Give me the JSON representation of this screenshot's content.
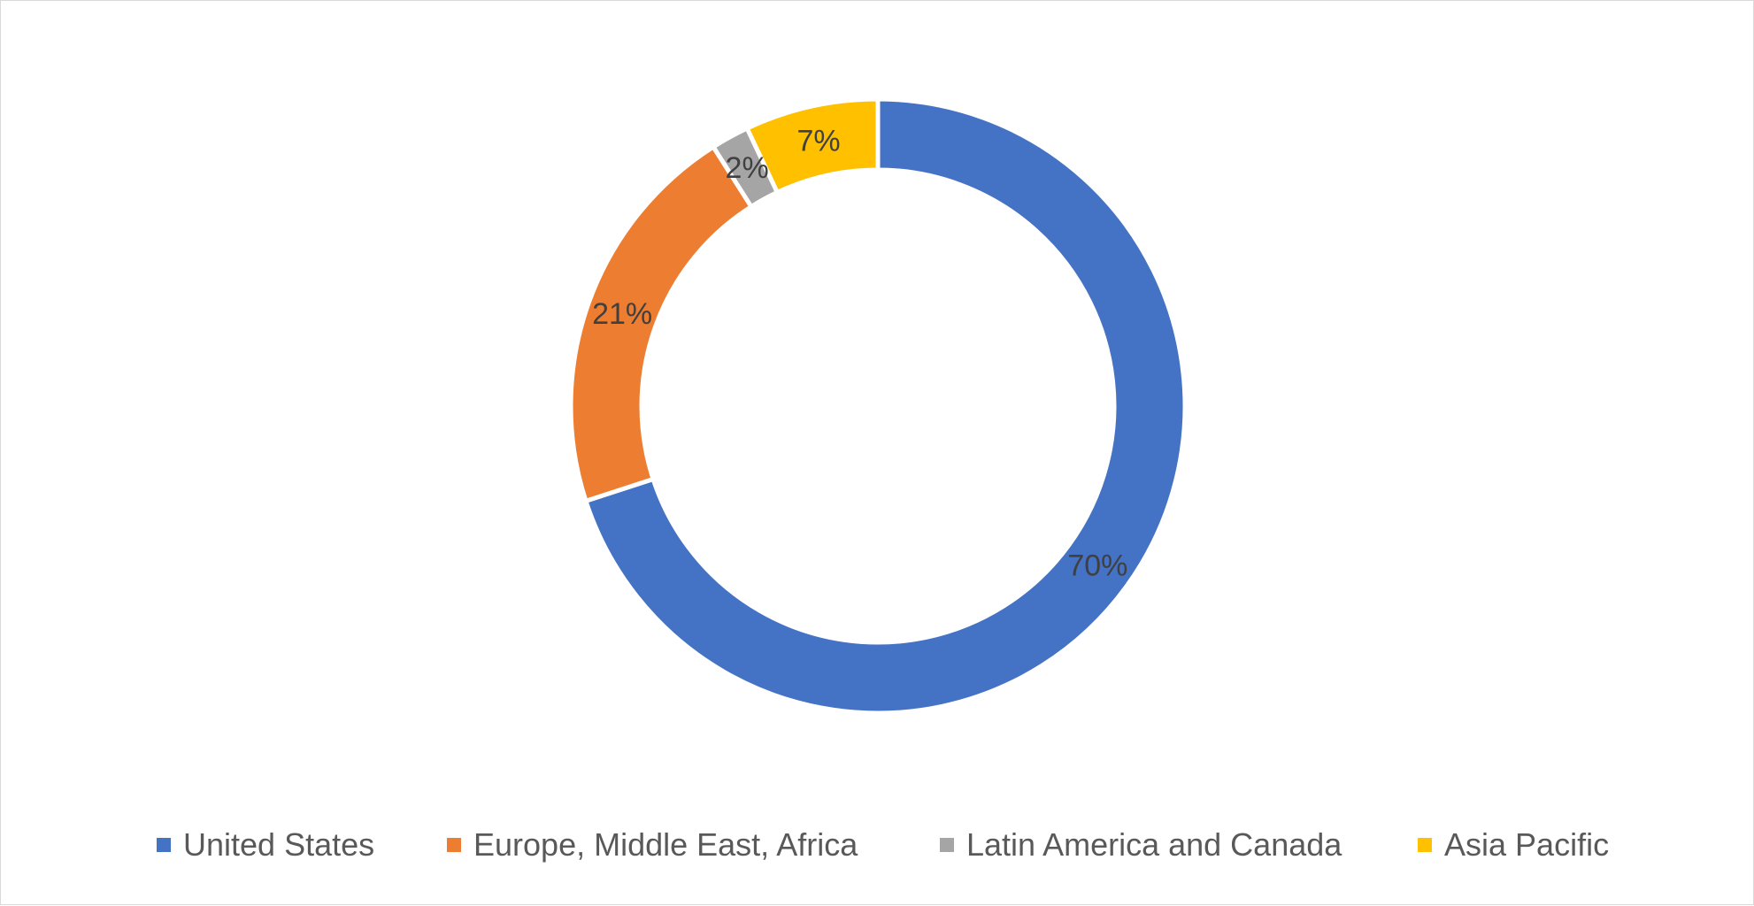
{
  "chart_data": {
    "type": "doughnut",
    "title": "",
    "series": [
      {
        "values": [
          70,
          21,
          2,
          7
        ],
        "labels": [
          "70%",
          "21%",
          "2%",
          "7%"
        ]
      }
    ],
    "categories": [
      "United States",
      "Europe, Middle East, Africa",
      "Latin America and Canada",
      "Asia Pacific"
    ],
    "colors": [
      "#4472C4",
      "#ED7D31",
      "#A5A5A5",
      "#FFC000"
    ],
    "start_angle": "12 o'clock",
    "direction": "clockwise",
    "legend_position": "bottom",
    "data_labels": "percent"
  },
  "legend": {
    "items": [
      {
        "label": "United States",
        "color": "#4472C4"
      },
      {
        "label": "Europe, Middle East, Africa",
        "color": "#ED7D31"
      },
      {
        "label": "Latin America and Canada",
        "color": "#A5A5A5"
      },
      {
        "label": "Asia Pacific",
        "color": "#FFC000"
      }
    ]
  }
}
